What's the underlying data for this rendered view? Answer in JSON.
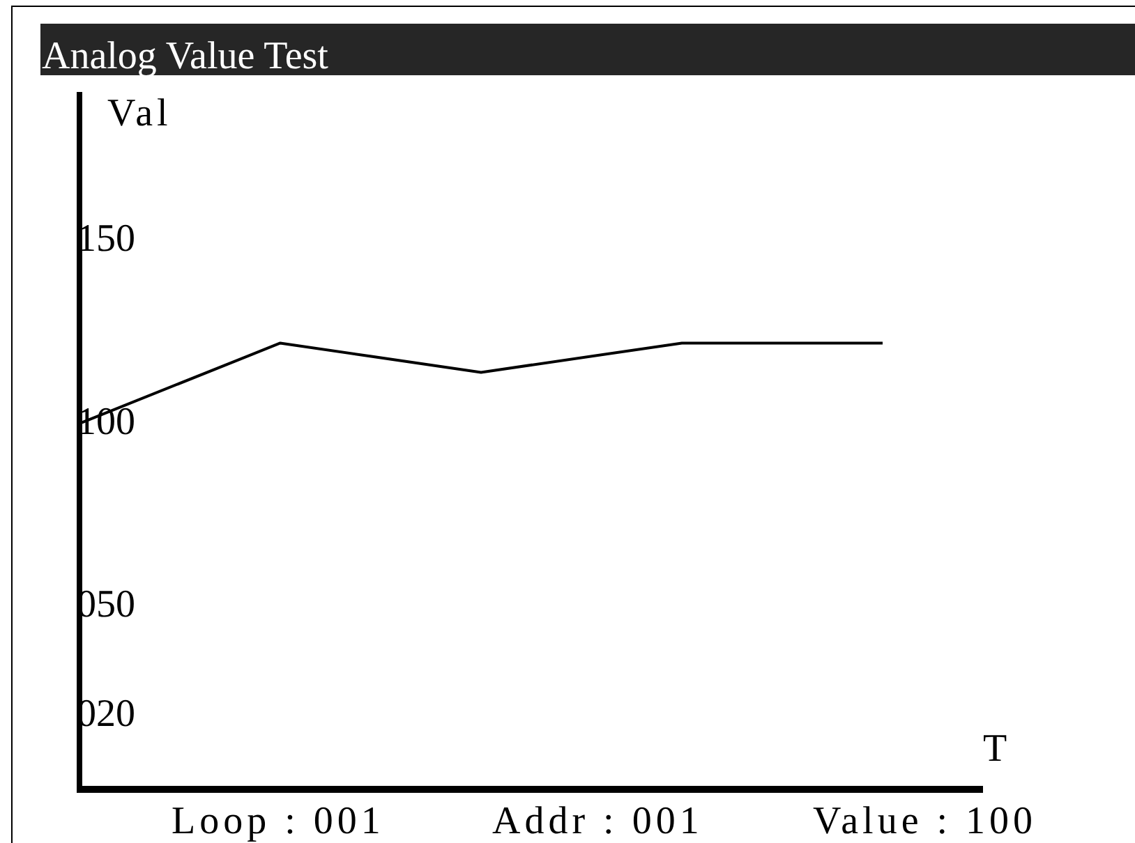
{
  "chart_data": {
    "type": "line",
    "title": "Analog Value Test",
    "ylabel": "Val",
    "xlabel": "T",
    "categories": [
      null,
      null,
      null,
      null,
      null
    ],
    "series": [
      {
        "color": "#000000",
        "values": [
          100,
          122,
          114,
          122,
          122
        ]
      }
    ],
    "ylim": [
      0,
      190
    ],
    "yticks": [
      {
        "value": 150,
        "label": "150"
      },
      {
        "value": 100,
        "label": "100"
      },
      {
        "value": 50,
        "label": "050"
      },
      {
        "value": 20,
        "label": "020"
      }
    ],
    "tick_labels": "y",
    "grid": false,
    "legend": false,
    "marker": "none",
    "line_style": "solid",
    "annotations": [
      "Loop : 001",
      "Addr : 001",
      "Value : 100"
    ]
  }
}
